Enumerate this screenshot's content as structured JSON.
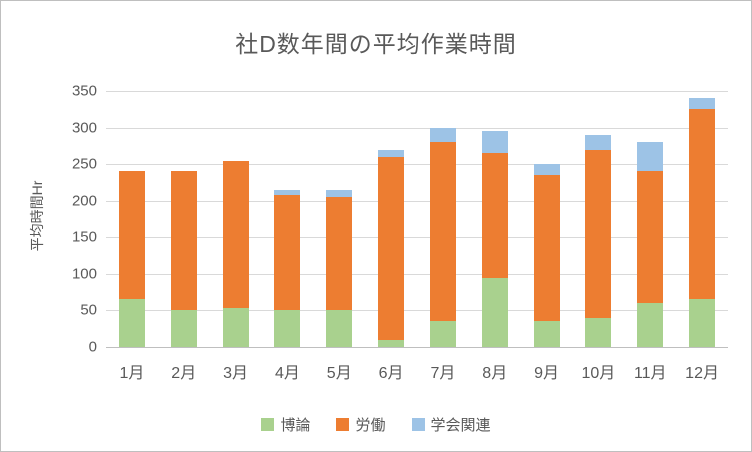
{
  "chart_data": {
    "type": "bar",
    "stacked": true,
    "title": "社D数年間の平均作業時間",
    "ylabel": "平均時間Hr",
    "xlabel": "",
    "categories": [
      "1月",
      "2月",
      "3月",
      "4月",
      "5月",
      "6月",
      "7月",
      "8月",
      "9月",
      "10月",
      "11月",
      "12月"
    ],
    "series": [
      {
        "name": "博論",
        "color": "#a9d18e",
        "values": [
          65,
          50,
          53,
          50,
          50,
          10,
          35,
          95,
          35,
          40,
          60,
          65
        ]
      },
      {
        "name": "労働",
        "color": "#ed7d31",
        "values": [
          175,
          190,
          202,
          158,
          155,
          250,
          245,
          170,
          200,
          230,
          180,
          260
        ]
      },
      {
        "name": "学会関連",
        "color": "#9dc3e6",
        "values": [
          0,
          0,
          0,
          7,
          10,
          10,
          20,
          30,
          15,
          20,
          40,
          15
        ]
      }
    ],
    "totals": [
      240,
      240,
      255,
      215,
      215,
      270,
      300,
      295,
      250,
      290,
      280,
      340
    ],
    "ylim": [
      0,
      350
    ],
    "ytick_step": 50,
    "grid": true,
    "legend_position": "bottom",
    "colors": {
      "title_text": "#595959",
      "axis_text": "#595959",
      "gridline": "#d9d9d9",
      "axis_line": "#bfbfbf",
      "background": "#ffffff"
    }
  }
}
